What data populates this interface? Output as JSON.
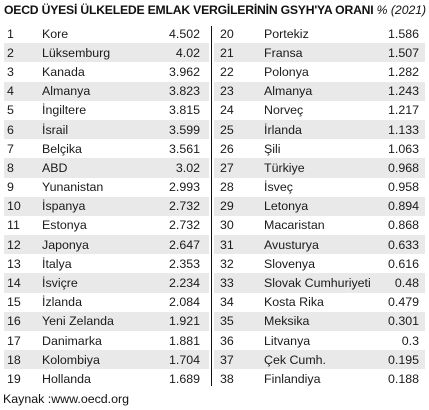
{
  "title": {
    "main": "OECD ÜYESİ ÜLKELEDE EMLAK VERGİLERİNİN GSYH'YA ORANI",
    "suffix": "% (2021)"
  },
  "left_rows": [
    {
      "rank": "1",
      "country": "Kore",
      "value": "4.502"
    },
    {
      "rank": "2",
      "country": "Lüksemburg",
      "value": "4.02"
    },
    {
      "rank": "3",
      "country": "Kanada",
      "value": "3.962"
    },
    {
      "rank": "4",
      "country": "Almanya",
      "value": "3.823"
    },
    {
      "rank": "5",
      "country": "İngiltere",
      "value": "3.815"
    },
    {
      "rank": "6",
      "country": "İsrail",
      "value": "3.599"
    },
    {
      "rank": "7",
      "country": "Belçika",
      "value": "3.561"
    },
    {
      "rank": "8",
      "country": "ABD",
      "value": "3.02"
    },
    {
      "rank": "9",
      "country": "Yunanistan",
      "value": "2.993"
    },
    {
      "rank": "10",
      "country": "İspanya",
      "value": "2.732"
    },
    {
      "rank": "11",
      "country": "Estonya",
      "value": "2.732"
    },
    {
      "rank": "12",
      "country": "Japonya",
      "value": "2.647"
    },
    {
      "rank": "13",
      "country": "İtalya",
      "value": "2.353"
    },
    {
      "rank": "14",
      "country": "İsviçre",
      "value": "2.234"
    },
    {
      "rank": "15",
      "country": "İzlanda",
      "value": "2.084"
    },
    {
      "rank": "16",
      "country": "Yeni Zelanda",
      "value": "1.921"
    },
    {
      "rank": "17",
      "country": "Danimarka",
      "value": "1.881"
    },
    {
      "rank": "18",
      "country": "Kolombiya",
      "value": "1.704"
    },
    {
      "rank": "19",
      "country": "Hollanda",
      "value": "1.689"
    }
  ],
  "right_rows": [
    {
      "rank": "20",
      "country": "Portekiz",
      "value": "1.586"
    },
    {
      "rank": "21",
      "country": "Fransa",
      "value": "1.507"
    },
    {
      "rank": "22",
      "country": "Polonya",
      "value": "1.282"
    },
    {
      "rank": "23",
      "country": "Almanya",
      "value": "1.243"
    },
    {
      "rank": "24",
      "country": "Norveç",
      "value": "1.217"
    },
    {
      "rank": "25",
      "country": "İrlanda",
      "value": "1.133"
    },
    {
      "rank": "26",
      "country": "Şili",
      "value": "1.063"
    },
    {
      "rank": "27",
      "country": "Türkiye",
      "value": "0.968"
    },
    {
      "rank": "28",
      "country": "İsveç",
      "value": "0.958"
    },
    {
      "rank": "29",
      "country": "Letonya",
      "value": "0.894"
    },
    {
      "rank": "30",
      "country": "Macaristan",
      "value": "0.868"
    },
    {
      "rank": "31",
      "country": "Avusturya",
      "value": "0.633"
    },
    {
      "rank": "32",
      "country": "Slovenya",
      "value": "0.616"
    },
    {
      "rank": "33",
      "country": "Slovak Cumhuriyeti",
      "value": "0.48"
    },
    {
      "rank": "34",
      "country": "Kosta Rika",
      "value": "0.479"
    },
    {
      "rank": "35",
      "country": "Meksika",
      "value": "0.301"
    },
    {
      "rank": "36",
      "country": "Litvanya",
      "value": "0.3"
    },
    {
      "rank": "37",
      "country": "Çek Cumh.",
      "value": "0.195"
    },
    {
      "rank": "38",
      "country": "Finlandiya",
      "value": "0.188"
    }
  ],
  "source": "Kaynak :www.oecd.org",
  "colors": {
    "shade": "#e9e9e9",
    "text": "#1a1a1a"
  }
}
